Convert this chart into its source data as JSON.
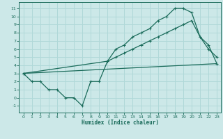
{
  "title": "",
  "xlabel": "Humidex (Indice chaleur)",
  "ylabel": "",
  "bg_color": "#cce8e8",
  "line_color": "#1a6b5a",
  "grid_color": "#b0d8d8",
  "xlim": [
    -0.5,
    23.5
  ],
  "ylim": [
    -1.8,
    11.8
  ],
  "xticks": [
    0,
    1,
    2,
    3,
    4,
    5,
    6,
    7,
    8,
    9,
    10,
    11,
    12,
    13,
    14,
    15,
    16,
    17,
    18,
    19,
    20,
    21,
    22,
    23
  ],
  "yticks": [
    -1,
    0,
    1,
    2,
    3,
    4,
    5,
    6,
    7,
    8,
    9,
    10,
    11
  ],
  "line1_x": [
    0,
    1,
    2,
    3,
    4,
    5,
    6,
    7,
    8,
    9,
    10,
    11,
    12,
    13,
    14,
    15,
    16,
    17,
    18,
    19,
    20,
    21,
    22,
    23
  ],
  "line1_y": [
    3,
    2,
    2,
    1,
    1,
    0,
    0,
    -1,
    2,
    2,
    4.5,
    6,
    6.5,
    7.5,
    8,
    8.5,
    9.5,
    10,
    11,
    11,
    10.5,
    7.5,
    6,
    5
  ],
  "line2_x": [
    0,
    23
  ],
  "line2_y": [
    3,
    4.2
  ],
  "line3_x": [
    0,
    10,
    11,
    12,
    13,
    14,
    15,
    16,
    17,
    18,
    19,
    20,
    21,
    22,
    23
  ],
  "line3_y": [
    3,
    4.5,
    5.0,
    5.5,
    6.0,
    6.5,
    7.0,
    7.5,
    8.0,
    8.5,
    9.0,
    9.5,
    7.5,
    6.5,
    4.2
  ]
}
